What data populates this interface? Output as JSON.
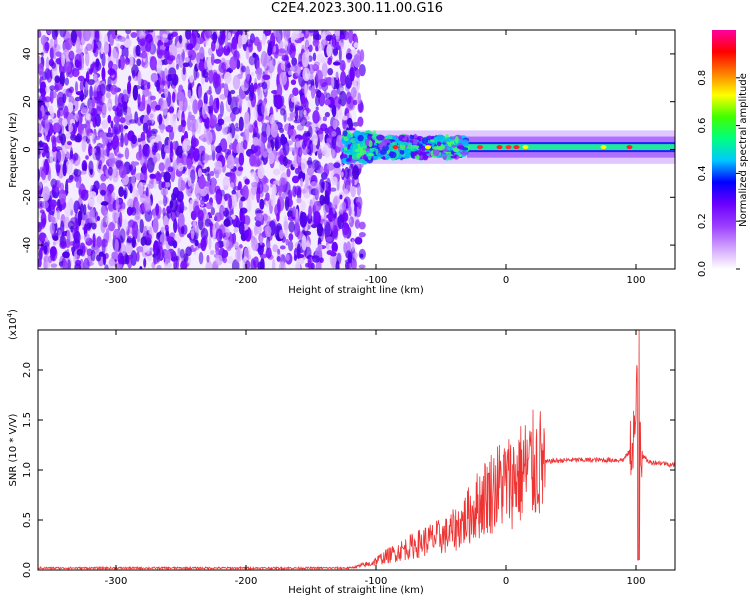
{
  "page": {
    "title": "C2E4.2023.300.11.00.G16"
  },
  "chart_data": [
    {
      "type": "heatmap",
      "title": "C2E4.2023.300.11.00.G16",
      "xlabel": "Height of straight line (km)",
      "ylabel": "Frequency (Hz)",
      "xlim": [
        -360,
        130
      ],
      "ylim": [
        -50,
        50
      ],
      "x_ticks": [
        -300,
        -200,
        -100,
        0,
        100
      ],
      "x_tick_labels": [
        "-300",
        "-200",
        "-100",
        "0",
        "100"
      ],
      "y_ticks": [
        -40,
        -20,
        0,
        20,
        40
      ],
      "y_tick_labels": [
        "-40",
        "-20",
        "0",
        "20",
        "40"
      ],
      "noise_region_x": [
        -360,
        -115
      ],
      "band_center_hz": 1,
      "band_halfwidth_hz": [
        4,
        7
      ],
      "colorbar": {
        "label": "Normalized spectral amplitude",
        "range": [
          0,
          1
        ],
        "ticks": [
          0,
          0.2,
          0.4,
          0.6,
          0.8
        ],
        "tick_labels": [
          "0.0",
          "0.2",
          "0.4",
          "0.6",
          "0.8"
        ],
        "colors": [
          "#ffffff",
          "#d0a0ff",
          "#9a3dff",
          "#6a00ff",
          "#0000ff",
          "#00c8ff",
          "#00ff80",
          "#40ff00",
          "#ffff00",
          "#ff8000",
          "#ff0000",
          "#ff00a0"
        ]
      },
      "grid": false
    },
    {
      "type": "line",
      "xlabel": "Height of straight line (km)",
      "ylabel": "SNR (10 * V/V)",
      "scale_label": "(x10",
      "scale_exp": "4",
      "scale_close": ")",
      "xlim": [
        -360,
        130
      ],
      "ylim": [
        0,
        2.4
      ],
      "x_ticks": [
        -300,
        -200,
        -100,
        0,
        100
      ],
      "x_tick_labels": [
        "-300",
        "-200",
        "-100",
        "0",
        "100"
      ],
      "y_ticks": [
        0,
        0.5,
        1.0,
        1.5,
        2.0
      ],
      "y_tick_labels": [
        "0.0",
        "0.5",
        "1.0",
        "1.5",
        "2.0"
      ],
      "color": "#ee3333",
      "envelope": {
        "x": [
          -360,
          -120,
          -105,
          -95,
          -80,
          -60,
          -45,
          -35,
          -25,
          -15,
          -5,
          5,
          15,
          25,
          35,
          50,
          70,
          90,
          96,
          100,
          102,
          104,
          110,
          120,
          130
        ],
        "y": [
          0.02,
          0.02,
          0.06,
          0.12,
          0.2,
          0.3,
          0.35,
          0.45,
          0.6,
          0.75,
          0.85,
          0.9,
          1.0,
          1.06,
          1.09,
          1.1,
          1.1,
          1.1,
          1.2,
          1.5,
          2.35,
          1.15,
          1.08,
          1.07,
          1.05
        ]
      },
      "grid": false
    }
  ]
}
